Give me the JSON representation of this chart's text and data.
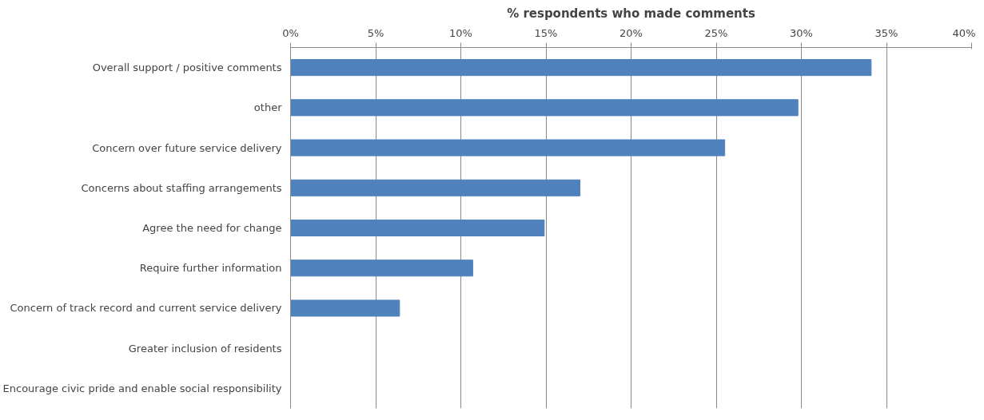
{
  "chart_data": {
    "type": "bar",
    "orientation": "horizontal",
    "title": "% respondents who made comments",
    "categories": [
      "Overall support / positive comments",
      "other",
      "Concern over future service delivery",
      "Concerns about staffing arrangements",
      "Agree the need for change",
      "Require further information",
      "Concern of track record and current service delivery",
      "Greater inclusion of residents",
      "Encourage civic pride and enable social responsibility"
    ],
    "values": [
      34.1,
      29.8,
      25.5,
      17.0,
      14.9,
      10.7,
      6.4,
      0,
      0
    ],
    "color": "#4f81bd",
    "xlim": [
      0,
      40
    ],
    "xticks": [
      {
        "value": 0,
        "label": "0%"
      },
      {
        "value": 5,
        "label": "5%"
      },
      {
        "value": 10,
        "label": "10%"
      },
      {
        "value": 15,
        "label": "15%"
      },
      {
        "value": 20,
        "label": "20%"
      },
      {
        "value": 25,
        "label": "25%"
      },
      {
        "value": 30,
        "label": "30%"
      },
      {
        "value": 35,
        "label": "35%"
      },
      {
        "value": 40,
        "label": "40%"
      }
    ],
    "grid": "x"
  }
}
